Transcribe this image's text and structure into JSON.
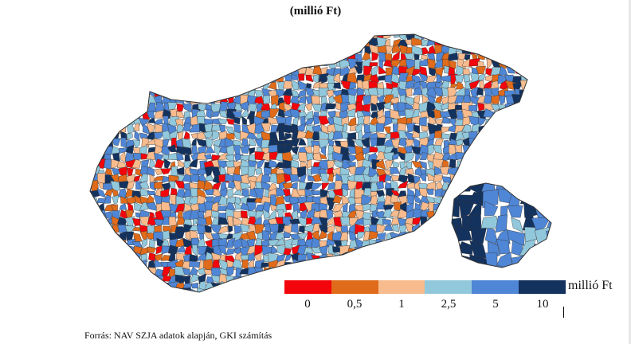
{
  "subtitle": "(millió Ft)",
  "legend": {
    "unit": "millió Ft",
    "ticks": [
      "0",
      "0,5",
      "1",
      "2,5",
      "5",
      "10"
    ],
    "colors": [
      "#f2060c",
      "#e06b1a",
      "#f7bb8e",
      "#92c8dc",
      "#4f86d5",
      "#14325e"
    ]
  },
  "inset": "Budapest",
  "source": "Forrás: NAV SZJA adatok alapján, GKI számítás"
}
